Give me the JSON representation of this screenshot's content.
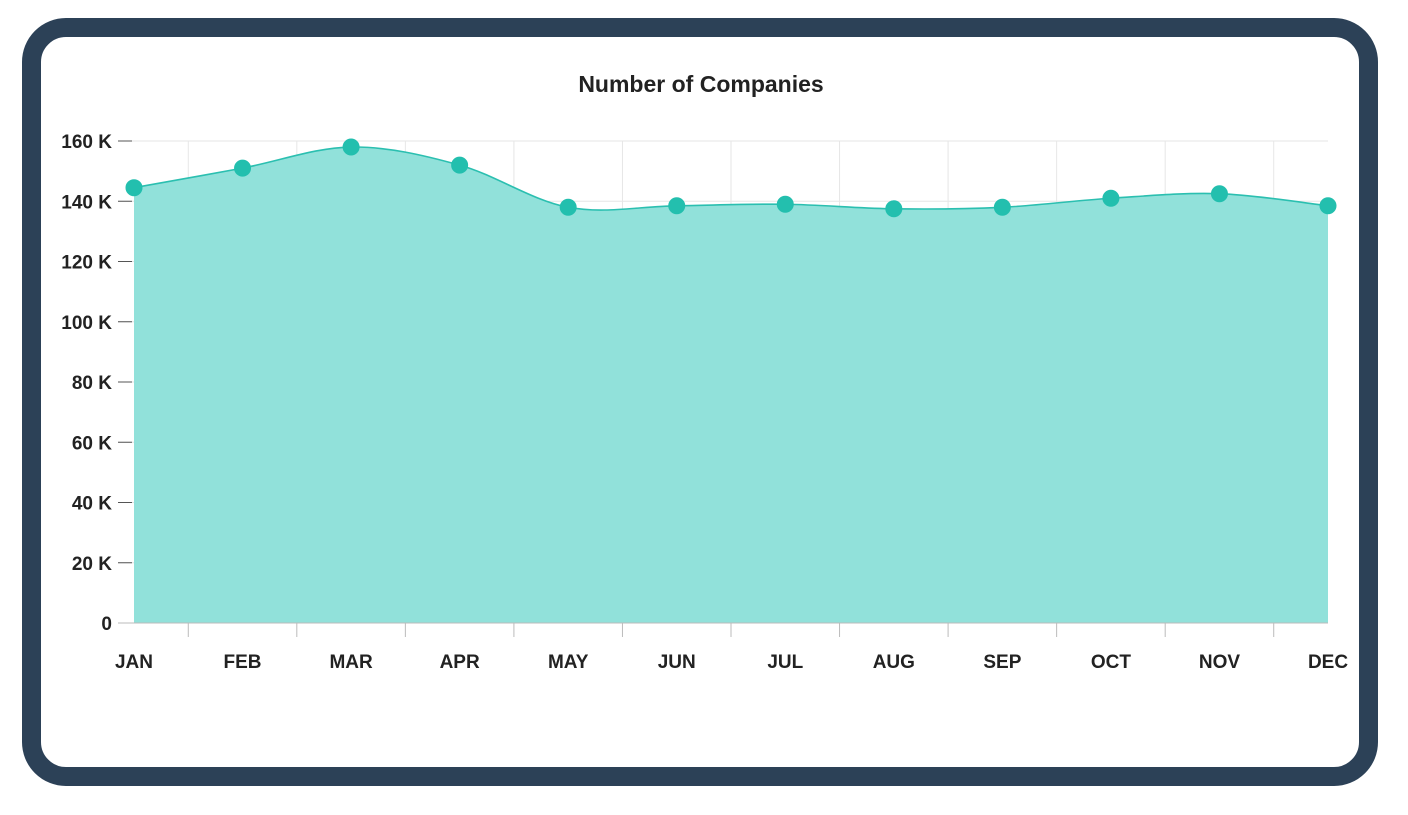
{
  "chart_data": {
    "type": "area",
    "title": "Number of Companies",
    "xlabel": "",
    "ylabel": "",
    "categories": [
      "JAN",
      "FEB",
      "MAR",
      "APR",
      "MAY",
      "JUN",
      "JUL",
      "AUG",
      "SEP",
      "OCT",
      "NOV",
      "DEC"
    ],
    "values": [
      144500,
      151000,
      158000,
      152000,
      138000,
      138500,
      139000,
      137500,
      138000,
      141000,
      142500,
      138500
    ],
    "ylim": [
      0,
      160000
    ],
    "yticks": [
      0,
      20000,
      40000,
      60000,
      80000,
      100000,
      120000,
      140000,
      160000
    ],
    "ytick_labels": [
      "0",
      "20 K",
      "40 K",
      "60 K",
      "80 K",
      "100 K",
      "120 K",
      "140 K",
      "160 K"
    ],
    "grid": true,
    "colors": {
      "fill": "#8fe0d9",
      "line": "#2bbfb0",
      "marker": "#23bfae",
      "grid": "#e6e6e6",
      "frame": "#2c4157"
    }
  }
}
